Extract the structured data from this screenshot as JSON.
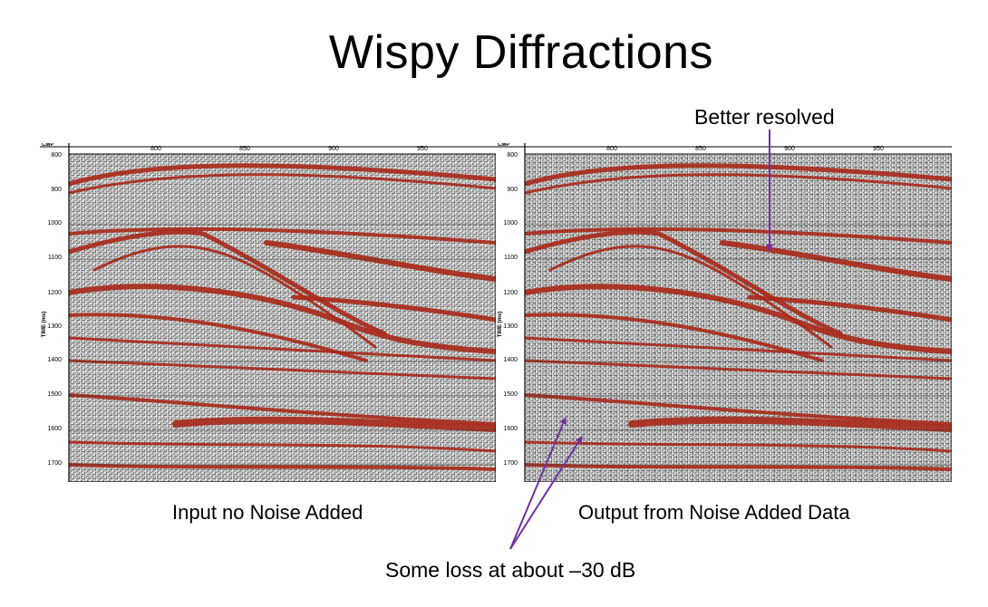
{
  "title": "Wispy Diffractions",
  "annotations": {
    "top": "Better resolved",
    "bottom": "Some loss at about –30 dB"
  },
  "captions": {
    "left": "Input no Noise Added",
    "right": "Output from Noise Added Data"
  },
  "axes": {
    "cmp_label": "CMP",
    "time_label": "TIME (ms)",
    "cmp_ticks": [
      "800",
      "850",
      "900",
      "950"
    ],
    "time_ticks": [
      "800",
      "900",
      "1000",
      "1100",
      "1200",
      "1300",
      "1400",
      "1500",
      "1600",
      "1700"
    ]
  },
  "colors": {
    "event": "#a82818",
    "arrow": "#7030a0",
    "frame": "#000000"
  }
}
